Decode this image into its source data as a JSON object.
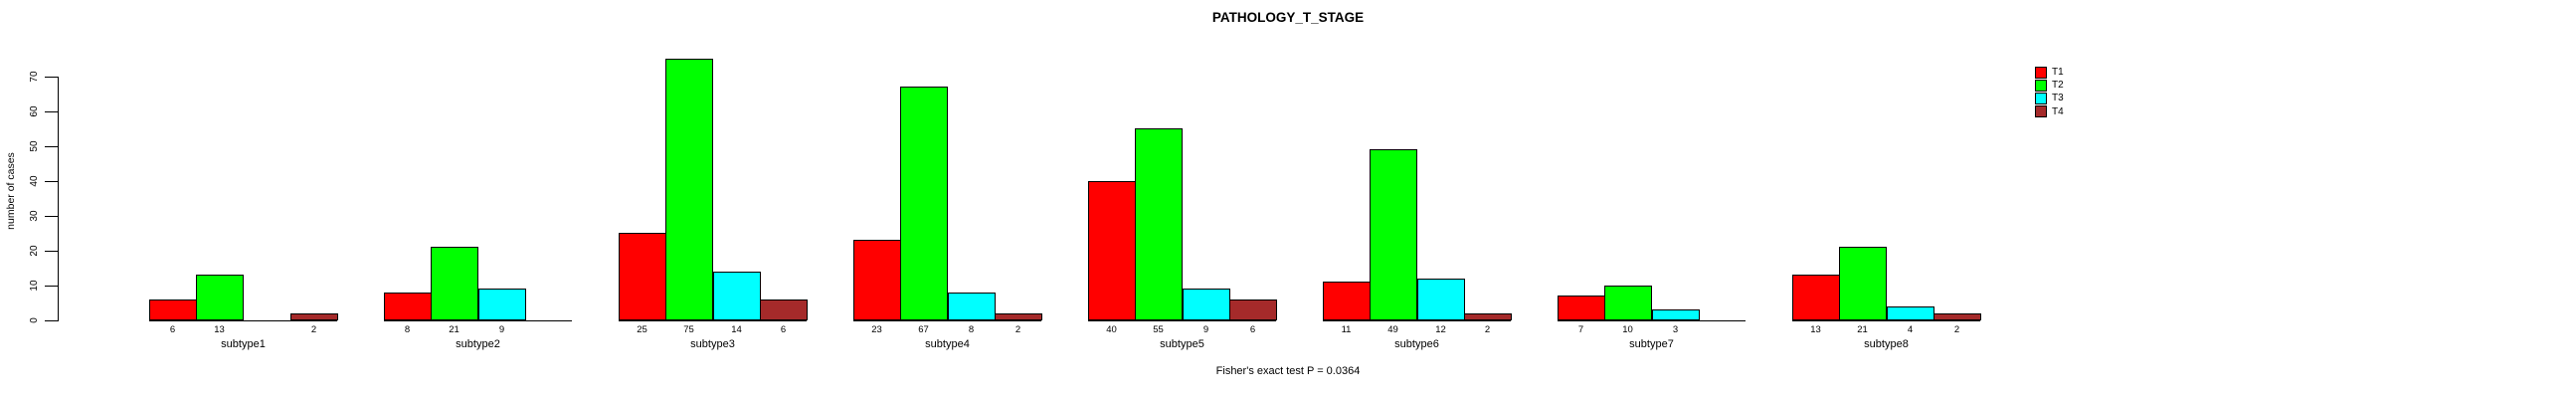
{
  "title": "PATHOLOGY_T_STAGE",
  "ylabel": "number of cases",
  "caption": "Fisher's exact test P = 0.0364",
  "chart_data": {
    "type": "bar",
    "title": "PATHOLOGY_T_STAGE",
    "xlabel": "",
    "ylabel": "number of cases",
    "ylim": [
      0,
      70
    ],
    "yticks": [
      0,
      10,
      20,
      30,
      40,
      50,
      60,
      70
    ],
    "grid": false,
    "legend_position": "top-right",
    "annotation": "Fisher's exact test P = 0.0364",
    "categories": [
      "subtype1",
      "subtype2",
      "subtype3",
      "subtype4",
      "subtype5",
      "subtype6",
      "subtype7",
      "subtype8"
    ],
    "series": [
      {
        "name": "T1",
        "color": "#FF0000",
        "values": [
          6,
          8,
          25,
          23,
          40,
          11,
          7,
          13
        ]
      },
      {
        "name": "T2",
        "color": "#00FF00",
        "values": [
          13,
          21,
          75,
          67,
          55,
          49,
          10,
          21
        ]
      },
      {
        "name": "T3",
        "color": "#00FFFF",
        "values": [
          0,
          9,
          14,
          8,
          9,
          12,
          3,
          4
        ]
      },
      {
        "name": "T4",
        "color": "#A52A2A",
        "values": [
          2,
          0,
          6,
          2,
          6,
          2,
          0,
          2
        ]
      }
    ],
    "zero_values_hidden": true
  }
}
